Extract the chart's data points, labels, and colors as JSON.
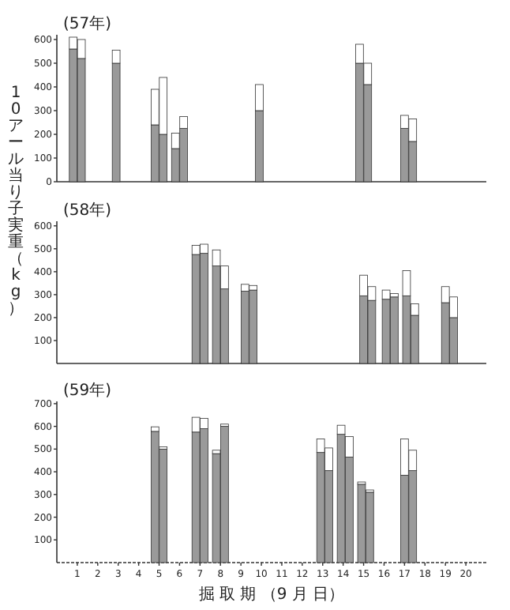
{
  "chart_data": [
    {
      "type": "bar",
      "title": "(57年)",
      "stacked": true,
      "tick_labels": "y",
      "xlim": [
        0,
        21
      ],
      "ylim": [
        0,
        620
      ],
      "yticks": [
        0,
        100,
        200,
        300,
        400,
        500,
        600
      ],
      "x": [
        0.8,
        1.2,
        2.9,
        4.8,
        5.2,
        5.8,
        6.2,
        9.9,
        14.8,
        15.2,
        17.0,
        17.4
      ],
      "series": [
        {
          "color": "#9a9a9a",
          "values": [
            560,
            520,
            500,
            240,
            200,
            140,
            225,
            300,
            500,
            410,
            225,
            170
          ]
        },
        {
          "color": "#ffffff",
          "values": [
            50,
            80,
            55,
            150,
            240,
            65,
            50,
            110,
            80,
            90,
            55,
            95
          ]
        }
      ]
    },
    {
      "type": "bar",
      "title": "(58年)",
      "ylabel": "10アール当り子実重（kg）",
      "stacked": true,
      "tick_labels": "y",
      "xlim": [
        0,
        21
      ],
      "ylim": [
        0,
        620
      ],
      "yticks": [
        100,
        200,
        300,
        400,
        500,
        600
      ],
      "x": [
        6.8,
        7.2,
        7.8,
        8.2,
        9.2,
        9.6,
        15.0,
        15.4,
        16.1,
        16.5,
        17.1,
        17.5,
        19.0,
        19.4
      ],
      "series": [
        {
          "color": "#9a9a9a",
          "values": [
            475,
            480,
            425,
            325,
            315,
            320,
            295,
            275,
            280,
            290,
            295,
            210,
            265,
            200
          ]
        },
        {
          "color": "#ffffff",
          "values": [
            40,
            40,
            70,
            100,
            30,
            20,
            90,
            60,
            40,
            15,
            110,
            50,
            70,
            90
          ]
        }
      ]
    },
    {
      "type": "bar",
      "title": "(59年)",
      "xlabel": "掘 取 期 （9 月 日）",
      "stacked": true,
      "xlim": [
        0,
        21
      ],
      "ylim": [
        0,
        710
      ],
      "yticks": [
        100,
        200,
        300,
        400,
        500,
        600,
        700
      ],
      "xticks": [
        1,
        2,
        3,
        4,
        5,
        6,
        7,
        8,
        9,
        10,
        11,
        12,
        13,
        14,
        15,
        16,
        17,
        18,
        19,
        20
      ],
      "x": [
        4.8,
        5.2,
        6.8,
        7.2,
        7.8,
        8.2,
        12.9,
        13.3,
        13.9,
        14.3,
        14.9,
        15.3,
        17.0,
        17.4
      ],
      "series": [
        {
          "color": "#9a9a9a",
          "values": [
            578,
            500,
            575,
            590,
            480,
            600,
            485,
            405,
            565,
            465,
            345,
            310,
            385,
            405
          ]
        },
        {
          "color": "#ffffff",
          "values": [
            20,
            10,
            65,
            45,
            15,
            10,
            60,
            100,
            40,
            90,
            10,
            10,
            160,
            90
          ]
        }
      ]
    }
  ]
}
